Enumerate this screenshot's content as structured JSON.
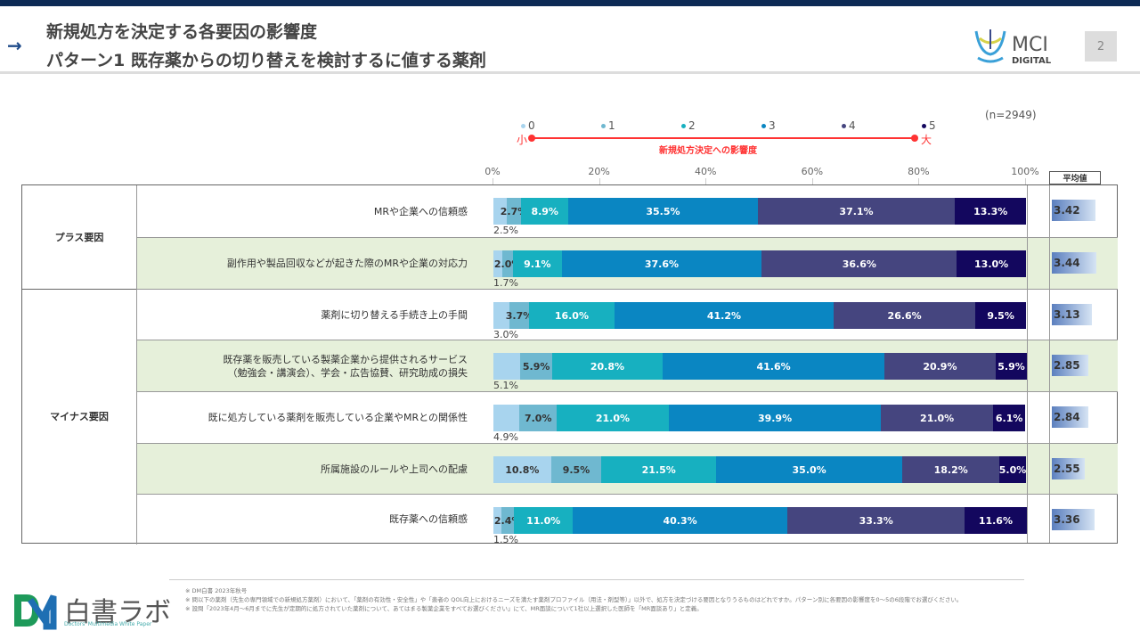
{
  "header": {
    "title_line1": "新規処方を決定する各要因の影響度",
    "title_line2": "パターン1  既存薬からの切り替えを検討するに値する薬剤",
    "page_number": "2",
    "logo_text": "MCI DIGITAL",
    "arrow_icon": "arrow-right-icon"
  },
  "chart_data": {
    "type": "bar",
    "orientation": "horizontal",
    "stacked": true,
    "sample_size": "(n=2949)",
    "legend": [
      "0",
      "1",
      "2",
      "3",
      "4",
      "5"
    ],
    "legend_placement": "top",
    "scale_small": "小",
    "scale_large": "大",
    "scale_label": "新規処方決定への影響度",
    "x_ticks": [
      "0%",
      "20%",
      "40%",
      "60%",
      "80%",
      "100%"
    ],
    "xlim": [
      0,
      100
    ],
    "colors": [
      "#a8d4ee",
      "#6fb8d0",
      "#17b0c0",
      "#0a86c2",
      "#45457f",
      "#13075e"
    ],
    "avg_header": "平均値",
    "groups": [
      {
        "label": "プラス要因",
        "rows": [
          0,
          1
        ]
      },
      {
        "label": "マイナス要因",
        "rows": [
          2,
          3,
          4,
          5,
          6
        ]
      }
    ],
    "categories": [
      "MRや企業への信頼感",
      "副作用や製品回収などが起きた際のMRや企業の対応力",
      "薬剤に切り替える手続き上の手間",
      "既存薬を販売している製薬企業から提供されるサービス\n（勉強会・講演会）、学会・広告協賛、研究助成の損失",
      "既に処方している薬剤を販売している企業やMRとの関係性",
      "所属施設のルールや上司への配慮",
      "既存薬への信頼感"
    ],
    "series": [
      {
        "name": "0",
        "values": [
          2.5,
          1.7,
          3.0,
          5.1,
          4.9,
          10.8,
          1.5
        ]
      },
      {
        "name": "1",
        "values": [
          2.7,
          2.0,
          3.7,
          5.9,
          7.0,
          9.5,
          2.4
        ]
      },
      {
        "name": "2",
        "values": [
          8.9,
          9.1,
          16.0,
          20.8,
          21.0,
          21.5,
          11.0
        ]
      },
      {
        "name": "3",
        "values": [
          35.5,
          37.6,
          41.2,
          41.6,
          39.9,
          35.0,
          40.3
        ]
      },
      {
        "name": "4",
        "values": [
          37.1,
          36.6,
          26.6,
          20.9,
          21.0,
          18.2,
          33.3
        ]
      },
      {
        "name": "5",
        "values": [
          13.3,
          13.0,
          9.5,
          5.9,
          6.1,
          5.0,
          11.6
        ]
      }
    ],
    "averages": [
      "3.42",
      "3.44",
      "3.13",
      "2.85",
      "2.84",
      "2.55",
      "3.36"
    ]
  },
  "footer": {
    "brand": "白書ラボ",
    "brand_sub": "Doctors' Multimedia White Paper",
    "notes": [
      "※ DM白書 2023年秋号",
      "※ 問以下の薬剤（先生の専門領域での新規処方薬剤）において、「薬剤の有効性・安全性」や「患者の QOL向上におけるニーズを満たす薬剤プロファイル（用法・剤型等）」以外で、処方を決定づける要因となりうるものはどれですか。パターン別に各要因の影響度を0～5の6段階でお選びください。",
      "※ 設問「2023年4月～6月までに先生が定期的に処方されていた薬剤について、あてはまる製薬企業をすべてお選びください」にて、MR面談について1社以上選択した医師を「MR面談あり」と定義。"
    ]
  }
}
